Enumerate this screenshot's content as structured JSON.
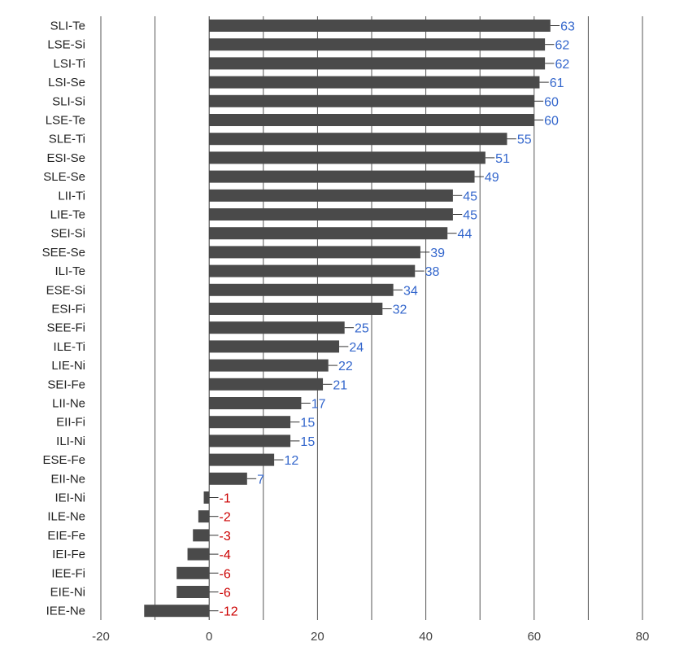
{
  "chart_data": {
    "type": "bar",
    "orientation": "horizontal",
    "categories": [
      "SLI-Te",
      "LSE-Si",
      "LSI-Ti",
      "LSI-Se",
      "SLI-Si",
      "LSE-Te",
      "SLE-Ti",
      "ESI-Se",
      "SLE-Se",
      "LII-Ti",
      "LIE-Te",
      "SEI-Si",
      "SEE-Se",
      "ILI-Te",
      "ESE-Si",
      "ESI-Fi",
      "SEE-Fi",
      "ILE-Ti",
      "LIE-Ni",
      "SEI-Fe",
      "LII-Ne",
      "EII-Fi",
      "ILI-Ni",
      "ESE-Fe",
      "EII-Ne",
      "IEI-Ni",
      "ILE-Ne",
      "EIE-Fe",
      "IEI-Fe",
      "IEE-Fi",
      "EIE-Ni",
      "IEE-Ne"
    ],
    "values": [
      63,
      62,
      62,
      61,
      60,
      60,
      55,
      51,
      49,
      45,
      45,
      44,
      39,
      38,
      34,
      32,
      25,
      24,
      22,
      21,
      17,
      15,
      15,
      12,
      7,
      -1,
      -2,
      -3,
      -4,
      -6,
      -6,
      -12
    ],
    "xlim": [
      -20,
      80
    ],
    "xticks": [
      -20,
      0,
      20,
      40,
      60,
      80
    ],
    "gridlines": "vertical, every 10 units",
    "bar_color": "#4a4a4a",
    "positive_label_color": "#3366cc",
    "negative_label_color": "#cc0000",
    "title": "",
    "xlabel": "",
    "ylabel": ""
  }
}
